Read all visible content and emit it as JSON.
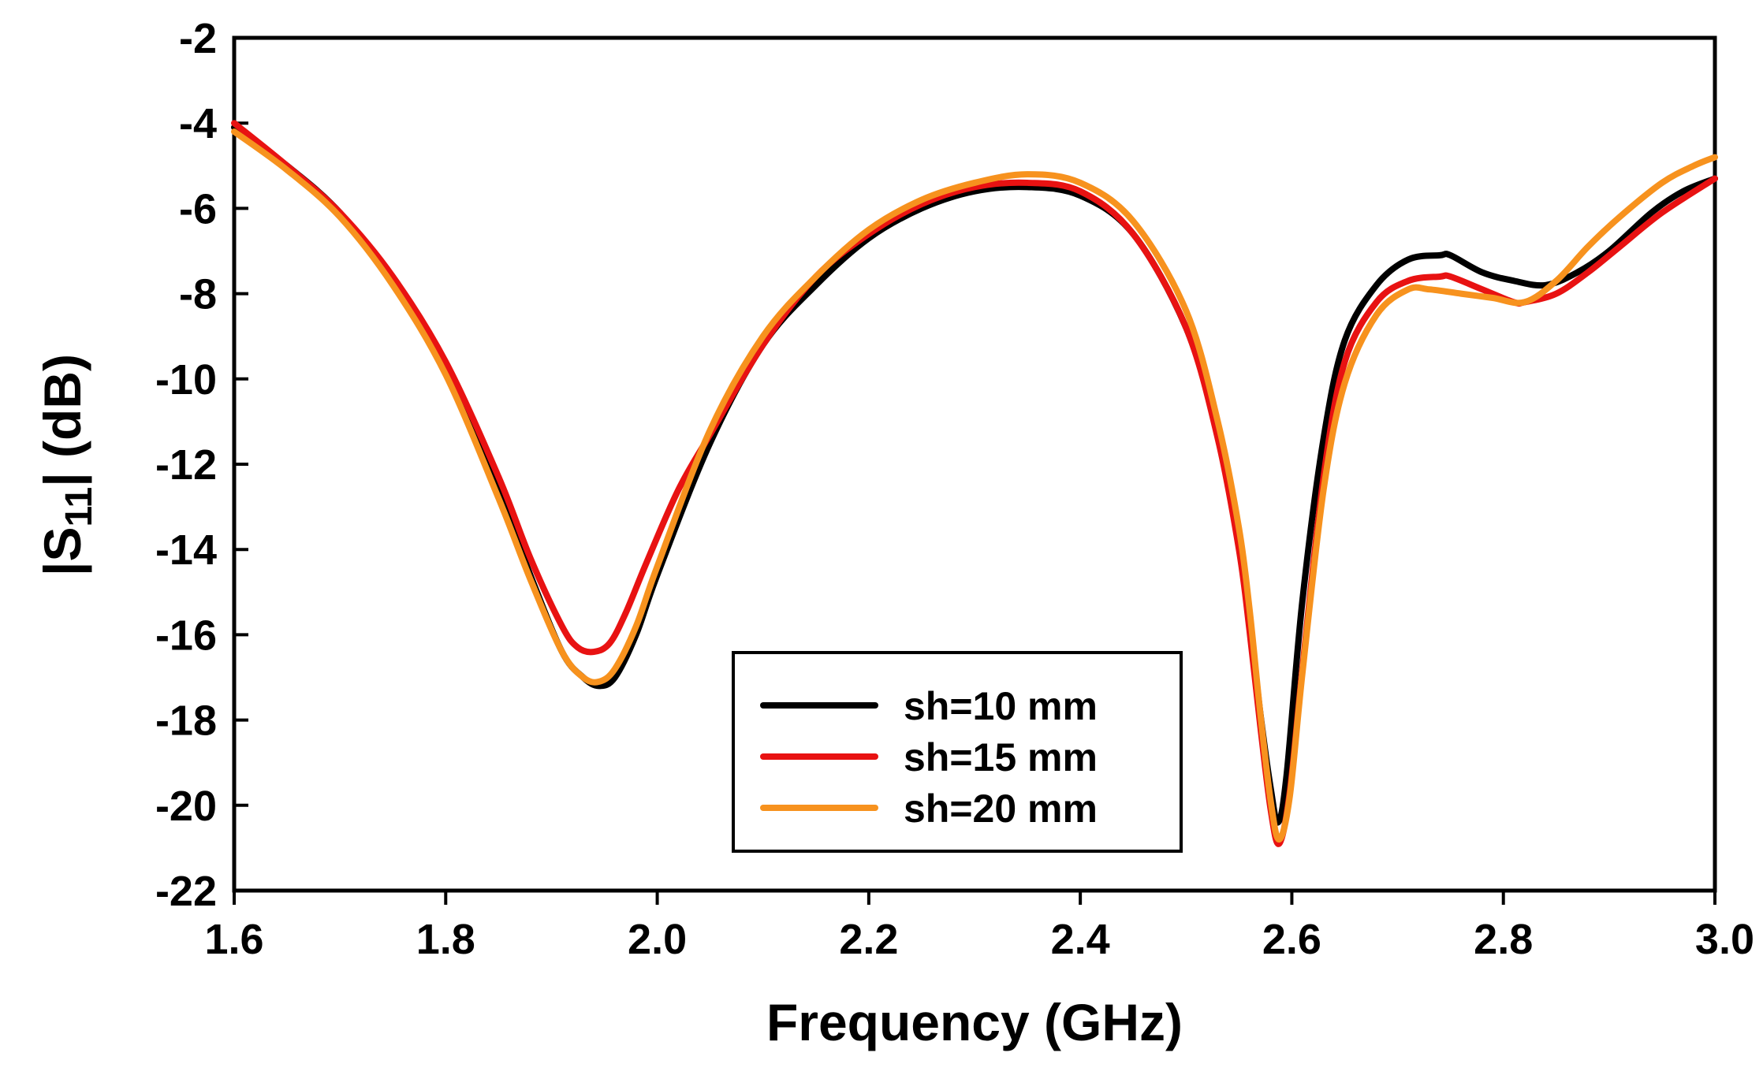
{
  "chart_data": {
    "type": "line",
    "title": "",
    "xlabel": "Frequency (GHz)",
    "ylabel_parts": {
      "prefix": "|S",
      "subscript": "11",
      "suffix": "| (dB)"
    },
    "xlim": [
      1.6,
      3.0
    ],
    "ylim": [
      -22,
      -2
    ],
    "x_ticks": [
      1.6,
      1.8,
      2.0,
      2.2,
      2.4,
      2.6,
      2.8,
      3.0
    ],
    "x_tick_labels": [
      "1.6",
      "1.8",
      "2.0",
      "2.2",
      "2.4",
      "2.6",
      "2.8",
      "3.0"
    ],
    "y_ticks": [
      -2,
      -4,
      -6,
      -8,
      -10,
      -12,
      -14,
      -16,
      -18,
      -20,
      -22
    ],
    "y_tick_labels": [
      "-2",
      "-4",
      "-6",
      "-8",
      "-10",
      "-12",
      "-14",
      "-16",
      "-18",
      "-20",
      "-22"
    ],
    "grid": false,
    "legend_position": "bottom-center",
    "series": [
      {
        "name": "sh=10 mm",
        "color": "#000000",
        "x": [
          1.6,
          1.65,
          1.7,
          1.75,
          1.8,
          1.85,
          1.88,
          1.91,
          1.93,
          1.945,
          1.96,
          1.98,
          2.0,
          2.05,
          2.1,
          2.15,
          2.2,
          2.25,
          2.3,
          2.35,
          2.4,
          2.45,
          2.5,
          2.53,
          2.55,
          2.56,
          2.57,
          2.58,
          2.587,
          2.595,
          2.61,
          2.63,
          2.65,
          2.68,
          2.71,
          2.74,
          2.75,
          2.78,
          2.81,
          2.84,
          2.87,
          2.9,
          2.94,
          2.97,
          3.0
        ],
        "values": [
          -4.1,
          -5.0,
          -6.1,
          -7.7,
          -9.8,
          -12.6,
          -14.6,
          -16.4,
          -17.0,
          -17.2,
          -17.0,
          -16.0,
          -14.6,
          -11.5,
          -9.2,
          -7.8,
          -6.7,
          -6.0,
          -5.6,
          -5.5,
          -5.7,
          -6.6,
          -8.8,
          -11.3,
          -13.8,
          -15.6,
          -17.8,
          -19.6,
          -20.4,
          -19.3,
          -15.2,
          -11.4,
          -9.1,
          -7.8,
          -7.2,
          -7.1,
          -7.1,
          -7.5,
          -7.7,
          -7.8,
          -7.5,
          -7.0,
          -6.1,
          -5.6,
          -5.3
        ]
      },
      {
        "name": "sh=15 mm",
        "color": "#e81212",
        "x": [
          1.6,
          1.65,
          1.7,
          1.75,
          1.8,
          1.85,
          1.88,
          1.91,
          1.925,
          1.94,
          1.955,
          1.97,
          1.99,
          2.02,
          2.05,
          2.1,
          2.15,
          2.2,
          2.25,
          2.3,
          2.35,
          2.4,
          2.45,
          2.5,
          2.53,
          2.55,
          2.56,
          2.57,
          2.58,
          2.588,
          2.598,
          2.61,
          2.63,
          2.65,
          2.68,
          2.71,
          2.74,
          2.75,
          2.78,
          2.81,
          2.82,
          2.85,
          2.88,
          2.91,
          2.95,
          3.0
        ],
        "values": [
          -4.0,
          -5.0,
          -6.1,
          -7.6,
          -9.6,
          -12.3,
          -14.2,
          -15.8,
          -16.3,
          -16.4,
          -16.2,
          -15.5,
          -14.3,
          -12.6,
          -11.3,
          -9.2,
          -7.6,
          -6.6,
          -5.9,
          -5.5,
          -5.4,
          -5.6,
          -6.6,
          -8.8,
          -11.4,
          -14.0,
          -15.9,
          -18.1,
          -20.1,
          -20.9,
          -19.7,
          -16.8,
          -12.3,
          -9.6,
          -8.2,
          -7.7,
          -7.6,
          -7.6,
          -7.9,
          -8.2,
          -8.2,
          -8.0,
          -7.5,
          -6.9,
          -6.1,
          -5.3
        ]
      },
      {
        "name": "sh=20 mm",
        "color": "#f7921e",
        "x": [
          1.6,
          1.65,
          1.7,
          1.75,
          1.8,
          1.85,
          1.88,
          1.91,
          1.93,
          1.945,
          1.96,
          1.98,
          2.0,
          2.05,
          2.1,
          2.15,
          2.2,
          2.25,
          2.3,
          2.35,
          2.4,
          2.45,
          2.5,
          2.53,
          2.55,
          2.56,
          2.57,
          2.58,
          2.588,
          2.598,
          2.61,
          2.63,
          2.65,
          2.68,
          2.71,
          2.73,
          2.76,
          2.79,
          2.82,
          2.85,
          2.88,
          2.91,
          2.95,
          2.98,
          3.0
        ],
        "values": [
          -4.2,
          -5.1,
          -6.2,
          -7.8,
          -9.9,
          -12.8,
          -14.7,
          -16.4,
          -17.0,
          -17.1,
          -16.8,
          -15.8,
          -14.4,
          -11.2,
          -9.0,
          -7.6,
          -6.5,
          -5.8,
          -5.4,
          -5.2,
          -5.4,
          -6.3,
          -8.4,
          -11.0,
          -13.5,
          -15.4,
          -17.8,
          -19.9,
          -20.8,
          -19.8,
          -16.9,
          -12.6,
          -10.1,
          -8.5,
          -7.9,
          -7.9,
          -8.0,
          -8.1,
          -8.2,
          -7.7,
          -6.9,
          -6.2,
          -5.4,
          -5.0,
          -4.8
        ]
      }
    ]
  }
}
